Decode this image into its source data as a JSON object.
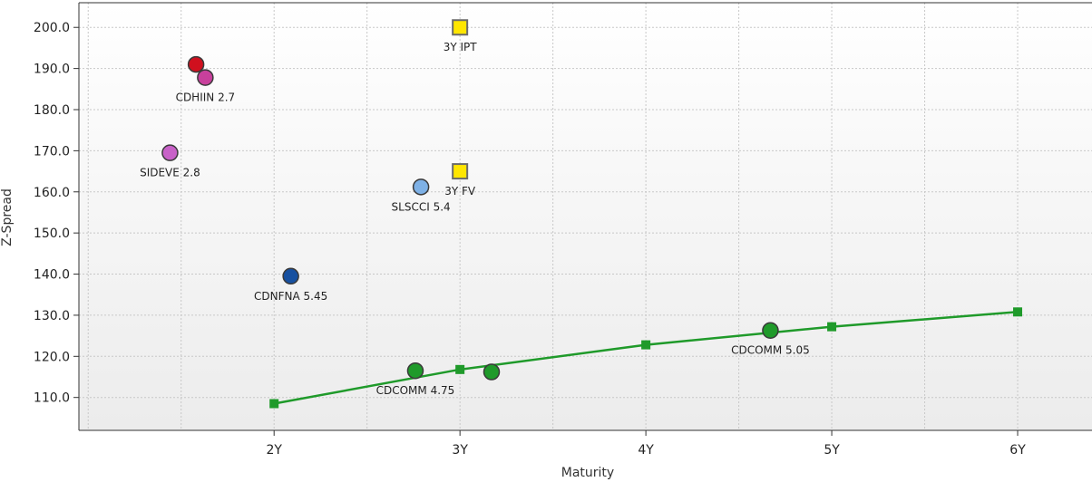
{
  "chart_data": {
    "type": "scatter",
    "title": "",
    "xlabel": "Maturity",
    "ylabel": "Z-Spread",
    "xlim": [
      0.95,
      6.4
    ],
    "ylim": [
      102,
      206
    ],
    "grid": true,
    "x_ticks": [
      {
        "value": 2,
        "label": "2Y"
      },
      {
        "value": 3,
        "label": "3Y"
      },
      {
        "value": 4,
        "label": "4Y"
      },
      {
        "value": 5,
        "label": "5Y"
      },
      {
        "value": 6,
        "label": "6Y"
      }
    ],
    "y_ticks": [
      {
        "value": 110,
        "label": "110.0"
      },
      {
        "value": 120,
        "label": "120.0"
      },
      {
        "value": 130,
        "label": "130.0"
      },
      {
        "value": 140,
        "label": "140.0"
      },
      {
        "value": 150,
        "label": "150.0"
      },
      {
        "value": 160,
        "label": "160.0"
      },
      {
        "value": 170,
        "label": "170.0"
      },
      {
        "value": 180,
        "label": "180.0"
      },
      {
        "value": 190,
        "label": "190.0"
      },
      {
        "value": 200,
        "label": "200.0"
      }
    ],
    "curve": {
      "color": "#1f9a2a",
      "points": [
        {
          "x": 2.0,
          "y": 108.5
        },
        {
          "x": 3.0,
          "y": 116.8
        },
        {
          "x": 4.0,
          "y": 122.8
        },
        {
          "x": 5.0,
          "y": 127.2
        },
        {
          "x": 6.0,
          "y": 130.8
        }
      ]
    },
    "points": [
      {
        "x": 1.58,
        "y": 191.0,
        "label": "",
        "shape": "circle",
        "color": "#d0101e"
      },
      {
        "x": 1.63,
        "y": 187.8,
        "label": "CDHIIN 2.7",
        "shape": "circle",
        "color": "#c8409c"
      },
      {
        "x": 1.44,
        "y": 169.5,
        "label": "SIDEVE 2.8",
        "shape": "circle",
        "color": "#c862c8"
      },
      {
        "x": 2.79,
        "y": 161.2,
        "label": "SLSCCI 5.4",
        "shape": "circle",
        "color": "#7eb1e6"
      },
      {
        "x": 2.09,
        "y": 139.5,
        "label": "CDNFNA 5.45",
        "shape": "circle",
        "color": "#1650a0"
      },
      {
        "x": 3.0,
        "y": 200.0,
        "label": "3Y IPT",
        "shape": "square",
        "color": "#ffe600"
      },
      {
        "x": 3.0,
        "y": 165.0,
        "label": "3Y FV",
        "shape": "square",
        "color": "#ffe600"
      },
      {
        "x": 2.76,
        "y": 116.5,
        "label": "CDCOMM 4.75",
        "shape": "circle",
        "color": "#1f9a2a"
      },
      {
        "x": 3.17,
        "y": 116.2,
        "label": "",
        "shape": "circle",
        "color": "#1f9a2a"
      },
      {
        "x": 4.67,
        "y": 126.3,
        "label": "CDCOMM 5.05",
        "shape": "circle",
        "color": "#1f9a2a"
      }
    ]
  }
}
